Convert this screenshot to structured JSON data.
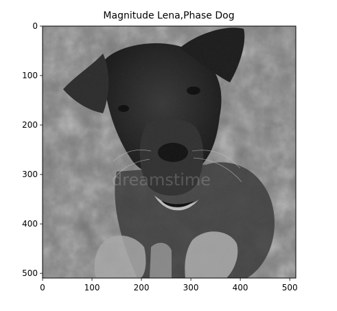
{
  "title": "Magnitude Lena,Phase Dog",
  "x_ticks": [
    "0",
    "100",
    "200",
    "300",
    "400",
    "500"
  ],
  "y_ticks": [
    "0",
    "100",
    "200",
    "300",
    "400",
    "500"
  ],
  "image": {
    "description_icon": "grayscale-dog-reconstruction-image",
    "watermark": "dreamstime"
  },
  "colors": {
    "background": "#ffffff",
    "axis": "#000000"
  }
}
